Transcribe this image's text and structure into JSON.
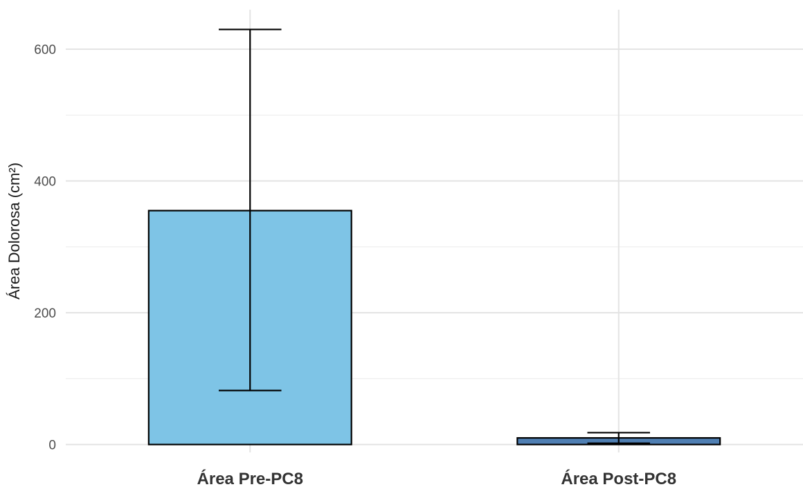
{
  "chart_data": {
    "type": "bar",
    "title": "",
    "xlabel": "",
    "ylabel": "Área Dolorosa (cm²)",
    "categories": [
      "Área Pre-PC8",
      "Área Post-PC8"
    ],
    "values": [
      355,
      10
    ],
    "error_bars": [
      {
        "low": 82,
        "high": 630
      },
      {
        "low": 2,
        "high": 18
      }
    ],
    "bar_colors": [
      "#7ec4e6",
      "#4f7fb3"
    ],
    "ylim": [
      -12,
      660
    ],
    "y_ticks": [
      0,
      200,
      400,
      600
    ],
    "y_minor_gridlines": [
      100,
      300,
      500
    ],
    "grid": true,
    "legend": "none"
  }
}
